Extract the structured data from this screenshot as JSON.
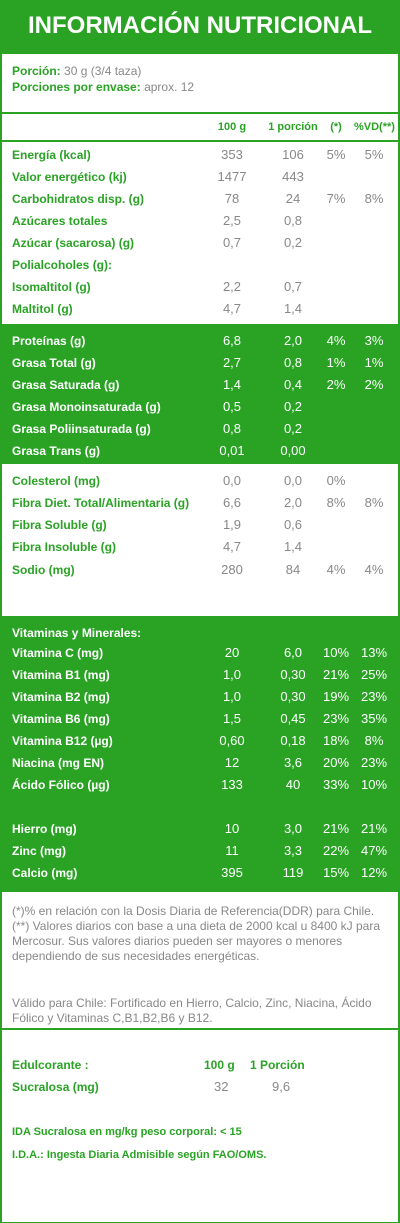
{
  "title": "INFORMACIÓN NUTRICIONAL",
  "portion": {
    "label": "Porción:",
    "value": "30 g (3/4 taza)"
  },
  "servings": {
    "label": "Porciones por envase:",
    "value": "aprox. 12"
  },
  "columns": [
    "100 g",
    "1 porción",
    "(*)",
    "%VD(**)"
  ],
  "group1": [
    {
      "label": "Energía (kcal)",
      "v100": "353",
      "vp": "106",
      "pct": "5%",
      "vd": "5%"
    },
    {
      "label": "Valor energético (kj)",
      "v100": "1477",
      "vp": "443",
      "pct": "",
      "vd": ""
    },
    {
      "label": "Carbohidratos disp. (g)",
      "v100": "78",
      "vp": "24",
      "pct": "7%",
      "vd": "8%"
    },
    {
      "label": "Azúcares totales",
      "v100": "2,5",
      "vp": "0,8",
      "pct": "",
      "vd": ""
    },
    {
      "label": "Azúcar (sacarosa) (g)",
      "v100": "0,7",
      "vp": "0,2",
      "pct": "",
      "vd": ""
    },
    {
      "label": "Polialcoholes (g):",
      "v100": "",
      "vp": "",
      "pct": "",
      "vd": ""
    },
    {
      "label": "Isomaltitol (g)",
      "v100": "2,2",
      "vp": "0,7",
      "pct": "",
      "vd": ""
    },
    {
      "label": "Maltitol (g)",
      "v100": "4,7",
      "vp": "1,4",
      "pct": "",
      "vd": ""
    }
  ],
  "group2": [
    {
      "label": "Proteínas (g)",
      "v100": "6,8",
      "vp": "2,0",
      "pct": "4%",
      "vd": "3%"
    },
    {
      "label": "Grasa Total (g)",
      "v100": "2,7",
      "vp": "0,8",
      "pct": "1%",
      "vd": "1%"
    },
    {
      "label": "Grasa Saturada (g)",
      "v100": "1,4",
      "vp": "0,4",
      "pct": "2%",
      "vd": "2%"
    },
    {
      "label": "Grasa Monoinsaturada (g)",
      "v100": "0,5",
      "vp": "0,2",
      "pct": "",
      "vd": ""
    },
    {
      "label": "Grasa Poliinsaturada (g)",
      "v100": "0,8",
      "vp": "0,2",
      "pct": "",
      "vd": ""
    },
    {
      "label": "Grasa Trans (g)",
      "v100": "0,01",
      "vp": "0,00",
      "pct": "",
      "vd": ""
    }
  ],
  "group3": [
    {
      "label": "Colesterol (mg)",
      "v100": "0,0",
      "vp": "0,0",
      "pct": "0%",
      "vd": ""
    },
    {
      "label": "Fibra Diet. Total/Alimentaria (g)",
      "v100": "6,6",
      "vp": "2,0",
      "pct": "8%",
      "vd": "8%"
    },
    {
      "label": "Fibra Soluble (g)",
      "v100": "1,9",
      "vp": "0,6",
      "pct": "",
      "vd": ""
    },
    {
      "label": "Fibra Insoluble (g)",
      "v100": "4,7",
      "vp": "1,4",
      "pct": "",
      "vd": ""
    },
    {
      "label": "Sodio (mg)",
      "v100": "280",
      "vp": "84",
      "pct": "4%",
      "vd": "4%"
    }
  ],
  "vitamins_title": "Vitaminas y Minerales:",
  "vitamins": [
    {
      "label": "Vitamina C (mg)",
      "v100": "20",
      "vp": "6,0",
      "pct": "10%",
      "vd": "13%"
    },
    {
      "label": "Vitamina B1 (mg)",
      "v100": "1,0",
      "vp": "0,30",
      "pct": "21%",
      "vd": "25%"
    },
    {
      "label": "Vitamina B2 (mg)",
      "v100": "1,0",
      "vp": "0,30",
      "pct": "19%",
      "vd": "23%"
    },
    {
      "label": "Vitamina B6 (mg)",
      "v100": "1,5",
      "vp": "0,45",
      "pct": "23%",
      "vd": "35%"
    },
    {
      "label": "Vitamina B12 (µg)",
      "v100": "0,60",
      "vp": "0,18",
      "pct": "18%",
      "vd": "8%"
    },
    {
      "label": "Niacina (mg EN)",
      "v100": "12",
      "vp": "3,6",
      "pct": "20%",
      "vd": "23%"
    },
    {
      "label": "Ácido Fólico (µg)",
      "v100": "133",
      "vp": "40",
      "pct": "33%",
      "vd": "10%"
    }
  ],
  "minerals": [
    {
      "label": "Hierro (mg)",
      "v100": "10",
      "vp": "3,0",
      "pct": "21%",
      "vd": "21%"
    },
    {
      "label": "Zinc (mg)",
      "v100": "11",
      "vp": "3,3",
      "pct": "22%",
      "vd": "47%"
    },
    {
      "label": "Calcio (mg)",
      "v100": "395",
      "vp": "119",
      "pct": "15%",
      "vd": "12%"
    }
  ],
  "notes": {
    "line1": "(*)% en relación con la Dosis Diaria de Referencia(DDR) para Chile. (**) Valores diarios con base a una dieta de 2000 kcal u 8400 kJ para Mercosur. Sus valores diarios pueden ser mayores o menores dependiendo de sus necesidades energéticas.",
    "line2": "Válido para Chile: Fortificado  en Hierro, Calcio, Zinc, Niacina, Ácido Fólico y Vitaminas C,B1,B2,B6 y B12."
  },
  "sweetener": {
    "label": "Edulcorante :",
    "col1": "100 g",
    "col2": "1 Porción",
    "item": "Sucralosa (mg)",
    "v100": "32",
    "vp": "9,6"
  },
  "ida": {
    "line1": "IDA Sucralosa en mg/kg peso corporal: < 15",
    "line2": "I.D.A.: Ingesta Diaria Admisible según FAO/OMS."
  }
}
